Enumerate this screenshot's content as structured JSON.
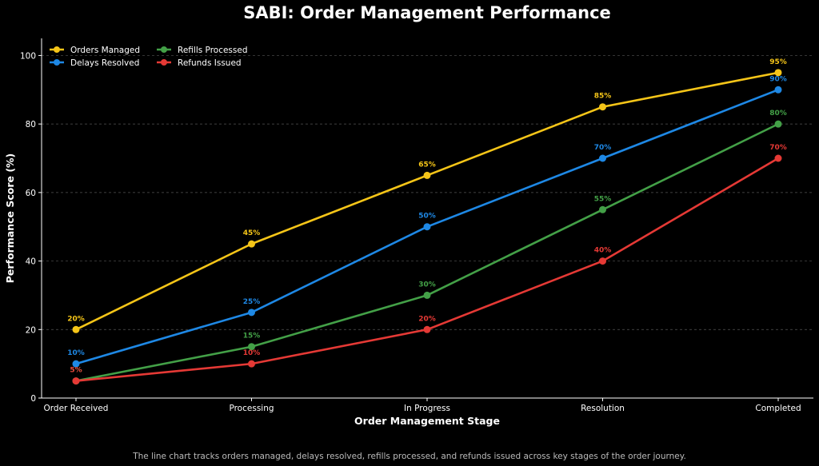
{
  "chart_data": {
    "type": "line",
    "title": "SABI: Order Management Performance",
    "xlabel": "Order Management Stage",
    "ylabel": "Performance Score (%)",
    "categories": [
      "Order Received",
      "Processing",
      "In Progress",
      "Resolution",
      "Completed"
    ],
    "ylim": [
      0,
      105
    ],
    "yticks": [
      0,
      20,
      40,
      60,
      80,
      100
    ],
    "grid": true,
    "legend_position": "top-left",
    "series": [
      {
        "name": "Orders Managed",
        "color": "#f5c518",
        "values": [
          20,
          45,
          65,
          85,
          95
        ],
        "labels": [
          "20%",
          "45%",
          "65%",
          "85%",
          "95%"
        ]
      },
      {
        "name": "Delays Resolved",
        "color": "#1e88e5",
        "values": [
          10,
          25,
          50,
          70,
          90
        ],
        "labels": [
          "10%",
          "25%",
          "50%",
          "70%",
          "90%"
        ]
      },
      {
        "name": "Refills Processed",
        "color": "#43a047",
        "values": [
          5,
          15,
          30,
          55,
          80
        ],
        "labels": [
          "5%",
          "15%",
          "30%",
          "55%",
          "80%"
        ]
      },
      {
        "name": "Refunds Issued",
        "color": "#e53935",
        "values": [
          5,
          10,
          20,
          40,
          70
        ],
        "labels": [
          "5%",
          "10%",
          "20%",
          "40%",
          "70%"
        ]
      }
    ]
  },
  "caption": "The line chart tracks orders managed, delays resolved, refills processed, and refunds issued across key stages of the order journey."
}
